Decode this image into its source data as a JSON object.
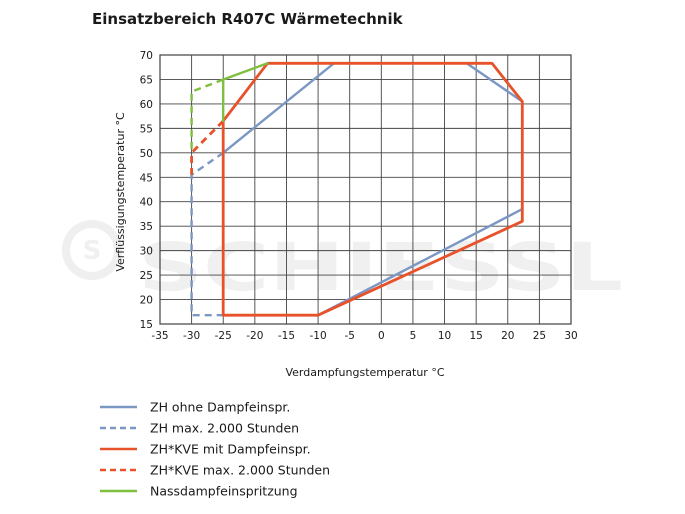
{
  "title": "Einsatzbereich R407C Wärmetechnik",
  "watermark": "SCHIESSL",
  "chart_data": {
    "type": "line",
    "title": "Einsatzbereich R407C Wärmetechnik",
    "xlabel": "Verdampfungstemperatur °C",
    "ylabel": "Verflüssigungstemperatur °C",
    "xlim": [
      -35,
      30
    ],
    "ylim": [
      15,
      70
    ],
    "xticks": [
      -35,
      -30,
      -25,
      -20,
      -15,
      -10,
      -5,
      0,
      5,
      10,
      15,
      20,
      25,
      30
    ],
    "yticks": [
      15,
      20,
      25,
      30,
      35,
      40,
      45,
      50,
      55,
      60,
      65,
      70
    ],
    "grid": true,
    "legend_position": "bottom",
    "series": [
      {
        "name": "ZH ohne Dampfeinspr.",
        "color": "#7b97c4",
        "dash": false,
        "points": [
          [
            -25,
            50
          ],
          [
            -7.5,
            68.3
          ],
          [
            13.5,
            68.3
          ],
          [
            22.3,
            60.5
          ],
          [
            22.3,
            38.5
          ],
          [
            -10,
            16.8
          ]
        ]
      },
      {
        "name": "ZH max. 2.000 Stunden",
        "color": "#7b97c4",
        "dash": true,
        "points": [
          [
            -25,
            50
          ],
          [
            -30,
            45.5
          ],
          [
            -30,
            16.8
          ],
          [
            -25,
            16.8
          ]
        ]
      },
      {
        "name": "ZH*KVE mit Dampfeinspr.",
        "color": "#e8522b",
        "dash": false,
        "points": [
          [
            -25,
            56.5
          ],
          [
            -18,
            68.3
          ],
          [
            17.5,
            68.3
          ],
          [
            22.3,
            60.5
          ],
          [
            22.3,
            36
          ],
          [
            -10,
            16.8
          ],
          [
            -25,
            16.8
          ],
          [
            -25,
            56.5
          ]
        ]
      },
      {
        "name": "ZH*KVE max. 2.000 Stunden",
        "color": "#e8522b",
        "dash": true,
        "points": [
          [
            -25,
            56.5
          ],
          [
            -30,
            50
          ],
          [
            -30,
            45.5
          ]
        ]
      },
      {
        "name": "Nassdampfeinspritzung",
        "color": "#7fbf3f",
        "dash": false,
        "points": [
          [
            -25,
            56.5
          ],
          [
            -25,
            65
          ],
          [
            -18,
            68.3
          ]
        ]
      },
      {
        "name": "",
        "color": "#7fbf3f",
        "dash": true,
        "points": [
          [
            -25,
            65
          ],
          [
            -28,
            63.5
          ],
          [
            -30,
            62.5
          ],
          [
            -30,
            50
          ]
        ]
      }
    ]
  },
  "legend": [
    {
      "label": "ZH ohne Dampfeinspr.",
      "color": "#7b97c4",
      "dash": false
    },
    {
      "label": "ZH max. 2.000 Stunden",
      "color": "#7b97c4",
      "dash": true
    },
    {
      "label": "ZH*KVE mit Dampfeinspr.",
      "color": "#e8522b",
      "dash": false
    },
    {
      "label": "ZH*KVE max. 2.000 Stunden",
      "color": "#e8522b",
      "dash": true
    },
    {
      "label": "Nassdampfeinspritzung",
      "color": "#7fbf3f",
      "dash": false
    }
  ]
}
